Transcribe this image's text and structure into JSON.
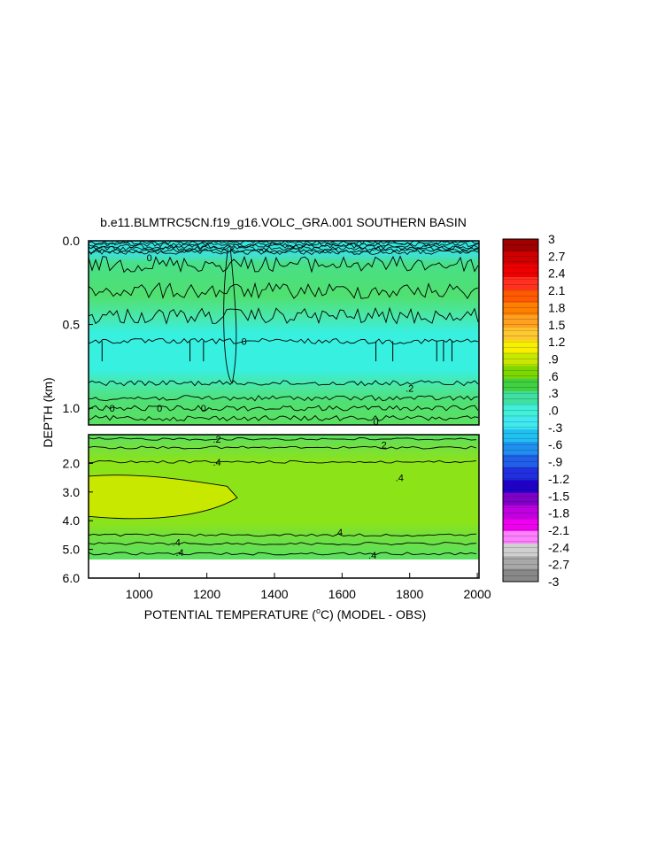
{
  "chart_data": {
    "type": "heatmap",
    "title": "b.e11.BLMTRC5CN.f19_g16.VOLC_GRA.001 SOUTHERN BASIN",
    "xlabel": "POTENTIAL TEMPERATURE (",
    "xlabel_super": "o",
    "xlabel_suffix": "C) (MODEL - OBS)",
    "ylabel": "DEPTH (km)",
    "xlim": [
      850,
      2005
    ],
    "x_ticks": [
      1000,
      1200,
      1400,
      1600,
      1800,
      2000
    ],
    "x_tick_labels": [
      "1000",
      "1200",
      "1400",
      "1600",
      "1800",
      "2000"
    ],
    "upper_panel": {
      "ylim": [
        0.0,
        1.1
      ],
      "y_ticks": [
        0.0,
        0.5,
        1.0
      ],
      "y_tick_labels": [
        "0.0",
        "0.5",
        "1.0"
      ]
    },
    "lower_panel": {
      "ylim": [
        1.0,
        6.0
      ],
      "y_ticks": [
        2.0,
        3.0,
        4.0,
        5.0,
        6.0
      ],
      "y_tick_labels": [
        "2.0",
        "3.0",
        "4.0",
        "5.0",
        "6.0"
      ],
      "data_bottom_depth": 5.4
    },
    "contour_labels": [
      {
        "panel": "upper",
        "x": 1030,
        "depth": 0.1,
        "text": "0"
      },
      {
        "panel": "upper",
        "x": 1310,
        "depth": 0.6,
        "text": "0"
      },
      {
        "panel": "upper",
        "x": 1800,
        "depth": 0.88,
        "text": ".2"
      },
      {
        "panel": "upper",
        "x": 920,
        "depth": 1.0,
        "text": "0"
      },
      {
        "panel": "upper",
        "x": 1060,
        "depth": 1.0,
        "text": "0"
      },
      {
        "panel": "upper",
        "x": 1190,
        "depth": 1.0,
        "text": "0"
      },
      {
        "panel": "upper",
        "x": 1700,
        "depth": 1.08,
        "text": "0"
      },
      {
        "panel": "lower",
        "x": 1230,
        "depth": 1.15,
        "text": ".2"
      },
      {
        "panel": "lower",
        "x": 1720,
        "depth": 1.35,
        "text": ".2"
      },
      {
        "panel": "lower",
        "x": 1230,
        "depth": 1.95,
        "text": ".4"
      },
      {
        "panel": "lower",
        "x": 1770,
        "depth": 2.5,
        "text": ".4"
      },
      {
        "panel": "lower",
        "x": 1590,
        "depth": 4.4,
        "text": ".4"
      },
      {
        "panel": "lower",
        "x": 1110,
        "depth": 4.75,
        "text": ".4"
      },
      {
        "panel": "lower",
        "x": 1120,
        "depth": 5.1,
        "text": ".4"
      },
      {
        "panel": "lower",
        "x": 1690,
        "depth": 5.2,
        "text": ".4"
      }
    ],
    "colorbar": {
      "min": -3,
      "max": 3,
      "labels": [
        "3",
        "2.7",
        "2.4",
        "2.1",
        "1.8",
        "1.5",
        "1.2",
        ".9",
        ".6",
        ".3",
        ".0",
        "-.3",
        "-.6",
        "-.9",
        "-1.2",
        "-1.5",
        "-1.8",
        "-2.1",
        "-2.4",
        "-2.7",
        "-3"
      ],
      "colors": [
        "#a00000",
        "#d00000",
        "#ef0000",
        "#ff3020",
        "#ff5a00",
        "#ff8000",
        "#ffa020",
        "#ffc830",
        "#f8f000",
        "#c8e800",
        "#7cd800",
        "#40d040",
        "#40e0a0",
        "#40f0d8",
        "#40e8f0",
        "#20c0f0",
        "#2090f0",
        "#2060e8",
        "#2030e0",
        "#2000c8",
        "#8000c8",
        "#c000e0",
        "#f000f0",
        "#ff80ff",
        "#d0d0d0",
        "#a8a8a8",
        "#888888"
      ]
    },
    "legend_placement": "right"
  }
}
